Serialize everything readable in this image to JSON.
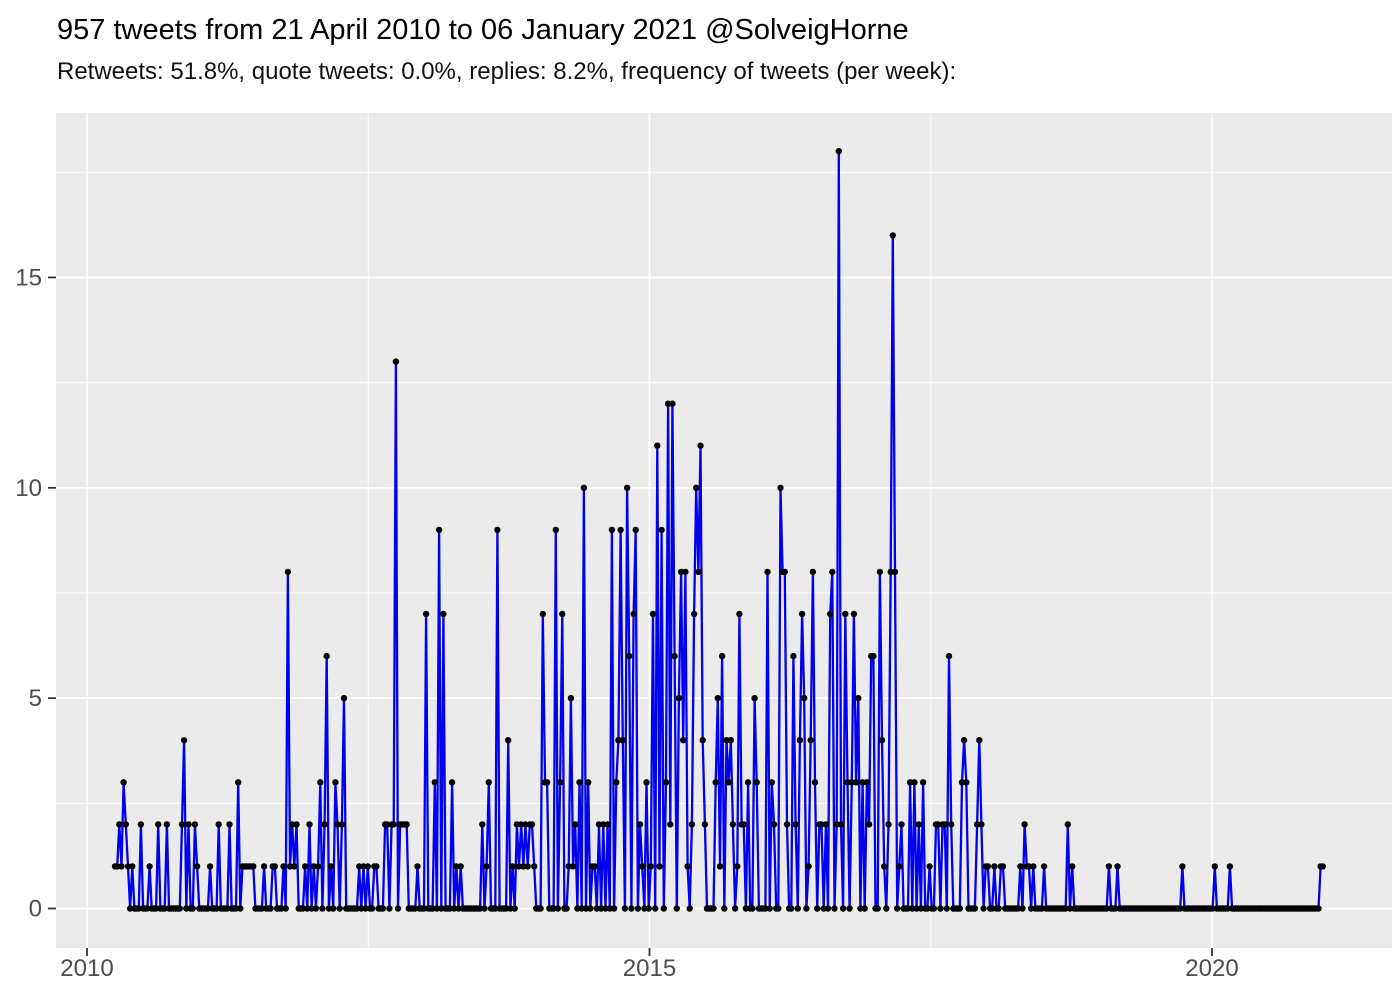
{
  "header": {
    "title": "957 tweets from 21 April 2010 to 06 January 2021 @SolveigHorne",
    "subtitle": "Retweets: 51.8%, quote tweets: 0.0%, replies: 8.2%, frequency of tweets (per week):"
  },
  "chart_data": {
    "type": "line",
    "title": "957 tweets from 21 April 2010 to 06 January 2021 @SolveigHorne",
    "subtitle": "Retweets: 51.8%, quote tweets: 0.0%, replies: 8.2%, frequency of tweets (per week):",
    "xlabel": "",
    "ylabel": "",
    "legend": "none",
    "grid": "on",
    "x_axis": {
      "tick_labels": [
        "2010",
        "2015",
        "2020"
      ],
      "tick_years": [
        2010,
        2015,
        2020
      ],
      "minor_grid_years": [
        2012.5,
        2017.5
      ]
    },
    "y_axis": {
      "tick_labels": [
        "0",
        "5",
        "10",
        "15"
      ],
      "tick_values": [
        0,
        5,
        10,
        15
      ],
      "minor_grid_values": [
        2.5,
        7.5,
        12.5,
        17.5
      ],
      "ylim": [
        0,
        18
      ]
    },
    "colors": {
      "line": "#0101EE",
      "marker": "#000000",
      "panel_bg": "#EBEBEB",
      "grid": "#FFFFFF",
      "tick_text": "#4D4D4D",
      "tick_mark": "#333333",
      "title_text": "#000000"
    },
    "series": [
      {
        "name": "tweets per week",
        "start_date": "2010-04-21",
        "end_date": "2021-01-06",
        "interval": "weekly",
        "values": [
          1,
          1,
          2,
          1,
          3,
          2,
          1,
          0,
          1,
          0,
          0,
          0,
          2,
          0,
          0,
          0,
          1,
          0,
          0,
          0,
          2,
          0,
          0,
          0,
          2,
          0,
          0,
          0,
          0,
          0,
          0,
          2,
          4,
          0,
          2,
          0,
          0,
          2,
          1,
          0,
          0,
          0,
          0,
          0,
          1,
          0,
          0,
          0,
          2,
          0,
          0,
          0,
          0,
          2,
          0,
          0,
          0,
          3,
          0,
          1,
          1,
          1,
          1,
          1,
          1,
          0,
          0,
          0,
          0,
          1,
          0,
          0,
          0,
          1,
          1,
          0,
          0,
          0,
          1,
          0,
          8,
          1,
          2,
          1,
          2,
          0,
          0,
          0,
          1,
          0,
          2,
          0,
          1,
          0,
          1,
          3,
          0,
          2,
          6,
          0,
          1,
          0,
          3,
          2,
          0,
          2,
          5,
          0,
          0,
          0,
          0,
          0,
          0,
          1,
          0,
          1,
          0,
          1,
          0,
          0,
          1,
          1,
          0,
          0,
          0,
          2,
          2,
          0,
          2,
          2,
          13,
          0,
          2,
          2,
          2,
          2,
          0,
          0,
          0,
          0,
          1,
          0,
          0,
          0,
          7,
          0,
          0,
          0,
          3,
          0,
          9,
          0,
          7,
          0,
          0,
          0,
          3,
          0,
          1,
          0,
          1,
          0,
          0,
          0,
          0,
          0,
          0,
          0,
          0,
          0,
          2,
          0,
          1,
          3,
          0,
          0,
          0,
          9,
          0,
          0,
          0,
          0,
          4,
          0,
          1,
          0,
          2,
          1,
          2,
          1,
          2,
          1,
          2,
          2,
          1,
          0,
          0,
          0,
          7,
          3,
          3,
          0,
          0,
          0,
          9,
          0,
          3,
          7,
          0,
          0,
          1,
          5,
          1,
          2,
          0,
          3,
          0,
          10,
          0,
          3,
          0,
          1,
          1,
          0,
          2,
          0,
          2,
          0,
          2,
          0,
          9,
          0,
          3,
          4,
          9,
          4,
          0,
          10,
          6,
          0,
          7,
          9,
          0,
          2,
          1,
          0,
          3,
          0,
          1,
          7,
          0,
          11,
          1,
          9,
          0,
          3,
          12,
          2,
          12,
          6,
          0,
          5,
          8,
          4,
          8,
          1,
          0,
          2,
          7,
          10,
          8,
          11,
          4,
          2,
          0,
          0,
          0,
          0,
          3,
          5,
          1,
          6,
          0,
          4,
          3,
          4,
          2,
          0,
          1,
          7,
          2,
          2,
          0,
          3,
          0,
          0,
          5,
          3,
          0,
          0,
          0,
          0,
          8,
          0,
          3,
          2,
          0,
          0,
          10,
          8,
          8,
          2,
          0,
          0,
          6,
          2,
          0,
          4,
          7,
          5,
          0,
          1,
          4,
          8,
          3,
          0,
          2,
          2,
          0,
          2,
          0,
          7,
          8,
          0,
          2,
          18,
          2,
          0,
          7,
          3,
          0,
          3,
          7,
          3,
          5,
          0,
          3,
          0,
          3,
          2,
          6,
          6,
          0,
          0,
          8,
          4,
          1,
          0,
          2,
          8,
          16,
          8,
          0,
          1,
          2,
          0,
          0,
          0,
          3,
          0,
          3,
          0,
          2,
          0,
          3,
          0,
          0,
          1,
          0,
          0,
          2,
          2,
          0,
          2,
          2,
          0,
          6,
          2,
          0,
          0,
          0,
          0,
          3,
          4,
          3,
          0,
          0,
          0,
          0,
          2,
          4,
          2,
          0,
          1,
          1,
          0,
          0,
          1,
          0,
          0,
          1,
          1,
          0,
          0,
          0,
          0,
          0,
          0,
          0,
          1,
          0,
          2,
          1,
          1,
          0,
          1,
          0,
          0,
          0,
          0,
          1,
          0,
          0,
          0,
          0,
          0,
          0,
          0,
          0,
          0,
          0,
          2,
          0,
          1,
          0,
          0,
          0,
          0,
          0,
          0,
          0,
          0,
          0,
          0,
          0,
          0,
          0,
          0,
          0,
          0,
          1,
          0,
          0,
          0,
          1,
          0,
          0,
          0,
          0,
          0,
          0,
          0,
          0,
          0,
          0,
          0,
          0,
          0,
          0,
          0,
          0,
          0,
          0,
          0,
          0,
          0,
          0,
          0,
          0,
          0,
          0,
          0,
          0,
          0,
          1,
          0,
          0,
          0,
          0,
          0,
          0,
          0,
          0,
          0,
          0,
          0,
          0,
          0,
          0,
          1,
          0,
          0,
          0,
          0,
          0,
          0,
          1,
          0,
          0,
          0,
          0,
          0,
          0,
          0,
          0,
          0,
          0,
          0,
          0,
          0,
          0,
          0,
          0,
          0,
          0,
          0,
          0,
          0,
          0,
          0,
          0,
          0,
          0,
          0,
          0,
          0,
          0,
          0,
          0,
          0,
          0,
          0,
          0,
          0,
          0,
          0,
          0,
          0,
          1,
          1
        ]
      }
    ]
  }
}
